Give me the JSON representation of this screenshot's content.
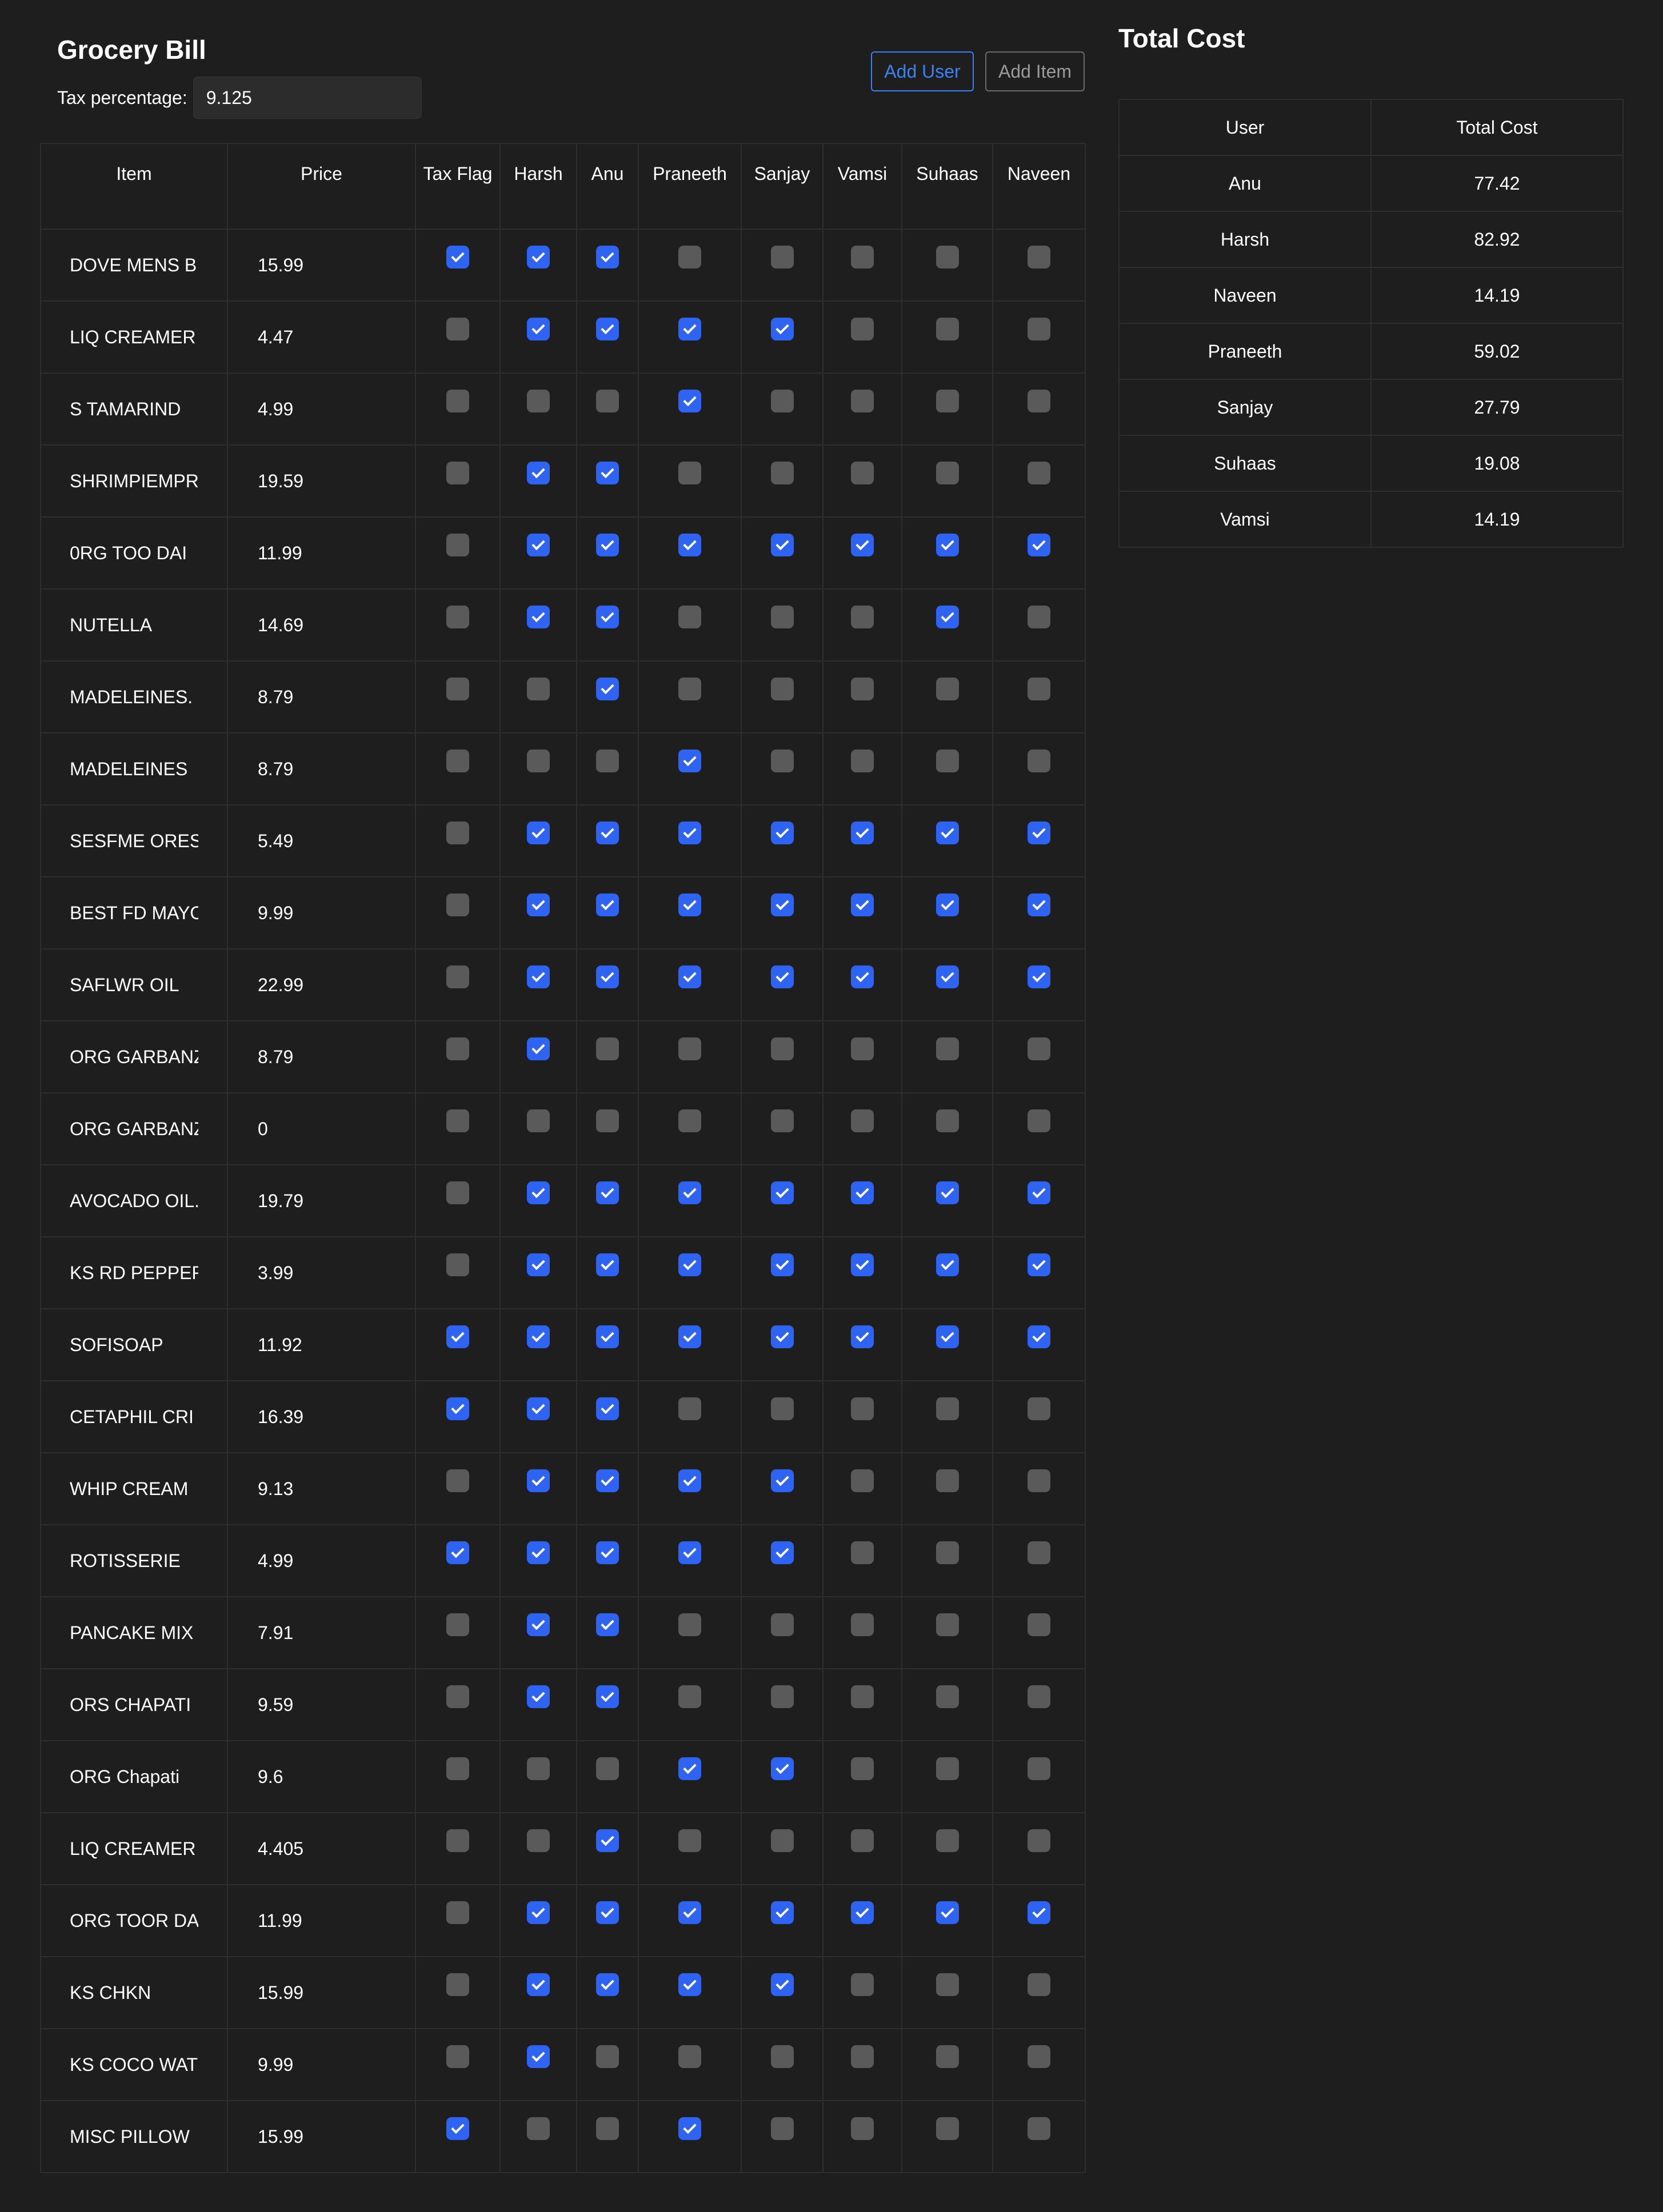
{
  "bill": {
    "title": "Grocery Bill",
    "tax_label": "Tax percentage:",
    "tax_value": "9.125",
    "add_user_label": "Add User",
    "add_item_label": "Add Item",
    "columns": [
      "Item",
      "Price",
      "Tax Flag",
      "Harsh",
      "Anu",
      "Praneeth",
      "Sanjay",
      "Vamsi",
      "Suhaas",
      "Naveen"
    ],
    "rows": [
      {
        "item": "DOVE MENS B",
        "price": "15.99",
        "flags": [
          1,
          1,
          1,
          0,
          0,
          0,
          0,
          0
        ]
      },
      {
        "item": "LIQ CREAMER",
        "price": "4.47",
        "flags": [
          0,
          1,
          1,
          1,
          1,
          0,
          0,
          0
        ]
      },
      {
        "item": "S TAMARIND",
        "price": "4.99",
        "flags": [
          0,
          0,
          0,
          1,
          0,
          0,
          0,
          0
        ]
      },
      {
        "item": "SHRIMPIEMPRA",
        "price": "19.59",
        "flags": [
          0,
          1,
          1,
          0,
          0,
          0,
          0,
          0
        ]
      },
      {
        "item": "0RG TOO DAI",
        "price": "11.99",
        "flags": [
          0,
          1,
          1,
          1,
          1,
          1,
          1,
          1
        ]
      },
      {
        "item": "NUTELLA",
        "price": "14.69",
        "flags": [
          0,
          1,
          1,
          0,
          0,
          0,
          1,
          0
        ]
      },
      {
        "item": "MADELEINES.",
        "price": "8.79",
        "flags": [
          0,
          0,
          1,
          0,
          0,
          0,
          0,
          0
        ]
      },
      {
        "item": "MADELEINES",
        "price": "8.79",
        "flags": [
          0,
          0,
          0,
          1,
          0,
          0,
          0,
          0
        ]
      },
      {
        "item": "SESFME ORES",
        "price": "5.49",
        "flags": [
          0,
          1,
          1,
          1,
          1,
          1,
          1,
          1
        ]
      },
      {
        "item": "BEST FD MAYO",
        "price": "9.99",
        "flags": [
          0,
          1,
          1,
          1,
          1,
          1,
          1,
          1
        ]
      },
      {
        "item": "SAFLWR OIL",
        "price": "22.99",
        "flags": [
          0,
          1,
          1,
          1,
          1,
          1,
          1,
          1
        ]
      },
      {
        "item": "ORG GARBANZ",
        "price": "8.79",
        "flags": [
          0,
          1,
          0,
          0,
          0,
          0,
          0,
          0
        ]
      },
      {
        "item": "ORG GARBANZ",
        "price": "0",
        "flags": [
          0,
          0,
          0,
          0,
          0,
          0,
          0,
          0
        ]
      },
      {
        "item": "AVOCADO OIL.",
        "price": "19.79",
        "flags": [
          0,
          1,
          1,
          1,
          1,
          1,
          1,
          1
        ]
      },
      {
        "item": "KS RD PEPPER",
        "price": "3.99",
        "flags": [
          0,
          1,
          1,
          1,
          1,
          1,
          1,
          1
        ]
      },
      {
        "item": "SOFISOAP",
        "price": "11.92",
        "flags": [
          1,
          1,
          1,
          1,
          1,
          1,
          1,
          1
        ]
      },
      {
        "item": "CETAPHIL CRI",
        "price": "16.39",
        "flags": [
          1,
          1,
          1,
          0,
          0,
          0,
          0,
          0
        ]
      },
      {
        "item": "WHIP CREAM",
        "price": "9.13",
        "flags": [
          0,
          1,
          1,
          1,
          1,
          0,
          0,
          0
        ]
      },
      {
        "item": "ROTISSERIE",
        "price": "4.99",
        "flags": [
          1,
          1,
          1,
          1,
          1,
          0,
          0,
          0
        ]
      },
      {
        "item": "PANCAKE MIX",
        "price": "7.91",
        "flags": [
          0,
          1,
          1,
          0,
          0,
          0,
          0,
          0
        ]
      },
      {
        "item": "ORS CHAPATI",
        "price": "9.59",
        "flags": [
          0,
          1,
          1,
          0,
          0,
          0,
          0,
          0
        ]
      },
      {
        "item": "ORG Chapati",
        "price": "9.6",
        "flags": [
          0,
          0,
          0,
          1,
          1,
          0,
          0,
          0
        ]
      },
      {
        "item": "LIQ CREAMER",
        "price": "4.405",
        "flags": [
          0,
          0,
          1,
          0,
          0,
          0,
          0,
          0
        ]
      },
      {
        "item": "ORG TOOR DAL",
        "price": "11.99",
        "flags": [
          0,
          1,
          1,
          1,
          1,
          1,
          1,
          1
        ]
      },
      {
        "item": "KS CHKN",
        "price": "15.99",
        "flags": [
          0,
          1,
          1,
          1,
          1,
          0,
          0,
          0
        ]
      },
      {
        "item": "KS COCO WATE",
        "price": "9.99",
        "flags": [
          0,
          1,
          0,
          0,
          0,
          0,
          0,
          0
        ]
      },
      {
        "item": "MISC PILLOW",
        "price": "15.99",
        "flags": [
          1,
          0,
          0,
          1,
          0,
          0,
          0,
          0
        ]
      }
    ]
  },
  "totals": {
    "title": "Total Cost",
    "columns": [
      "User",
      "Total Cost"
    ],
    "rows": [
      {
        "user": "Anu",
        "cost": "77.42"
      },
      {
        "user": "Harsh",
        "cost": "82.92"
      },
      {
        "user": "Naveen",
        "cost": "14.19"
      },
      {
        "user": "Praneeth",
        "cost": "59.02"
      },
      {
        "user": "Sanjay",
        "cost": "27.79"
      },
      {
        "user": "Suhaas",
        "cost": "19.08"
      },
      {
        "user": "Vamsi",
        "cost": "14.19"
      }
    ]
  }
}
